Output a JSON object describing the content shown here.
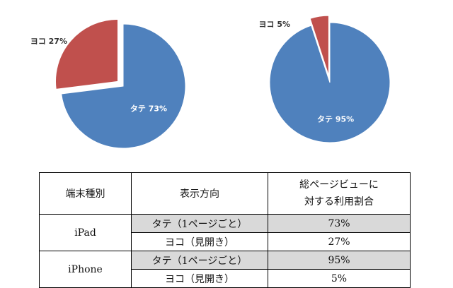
{
  "chart_data": [
    {
      "type": "pie",
      "slices": [
        {
          "label": "タテ",
          "value": 73,
          "display": "タテ 73%",
          "color": "#4f81bd"
        },
        {
          "label": "ヨコ",
          "value": 27,
          "display": "ヨコ 27%",
          "color": "#c0504d",
          "exploded": true
        }
      ]
    },
    {
      "type": "pie",
      "slices": [
        {
          "label": "タテ",
          "value": 95,
          "display": "タテ 95%",
          "color": "#4f81bd"
        },
        {
          "label": "ヨコ",
          "value": 5,
          "display": "ヨコ 5%",
          "color": "#c0504d",
          "exploded": true
        }
      ]
    },
    {
      "type": "table",
      "headers": [
        "端末種別",
        "表示方向",
        "総ページビューに対する利用割合"
      ],
      "header_lines": [
        "総ページビューに",
        "対する利用割合"
      ],
      "groups": [
        {
          "device": "iPad",
          "rows": [
            {
              "orientation": "タテ（1ページごと）",
              "share": "73%"
            },
            {
              "orientation": "ヨコ（見開き）",
              "share": "27%"
            }
          ]
        },
        {
          "device": "iPhone",
          "rows": [
            {
              "orientation": "タテ（1ページごと）",
              "share": "95%"
            },
            {
              "orientation": "ヨコ（見開き）",
              "share": "5%"
            }
          ]
        }
      ]
    }
  ]
}
